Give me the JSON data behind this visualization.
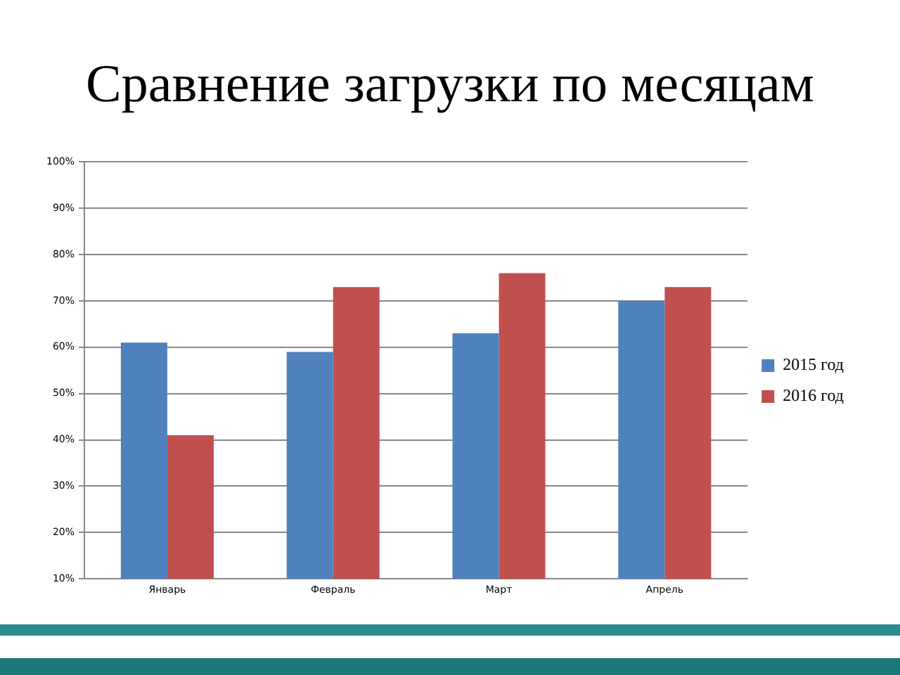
{
  "chart_data": {
    "type": "bar",
    "title": "Сравнение загрузки по месяцам",
    "categories": [
      "Январь",
      "Февраль",
      "Март",
      "Апрель"
    ],
    "series": [
      {
        "name": "2015 год",
        "color": "#4f81bd",
        "values": [
          61,
          59,
          63,
          70
        ]
      },
      {
        "name": "2016 год",
        "color": "#c0504d",
        "values": [
          41,
          73,
          76,
          73
        ]
      }
    ],
    "ylim": [
      10,
      100
    ],
    "yticks": [
      {
        "value": 10,
        "label": "10%"
      },
      {
        "value": 20,
        "label": "20%"
      },
      {
        "value": 30,
        "label": "30%"
      },
      {
        "value": 40,
        "label": "40%"
      },
      {
        "value": 50,
        "label": "50%"
      },
      {
        "value": 60,
        "label": "60%"
      },
      {
        "value": 70,
        "label": "70%"
      },
      {
        "value": 80,
        "label": "80%"
      },
      {
        "value": 90,
        "label": "90%"
      },
      {
        "value": 100,
        "label": "100%"
      }
    ],
    "grid": "y",
    "legend": "right"
  }
}
